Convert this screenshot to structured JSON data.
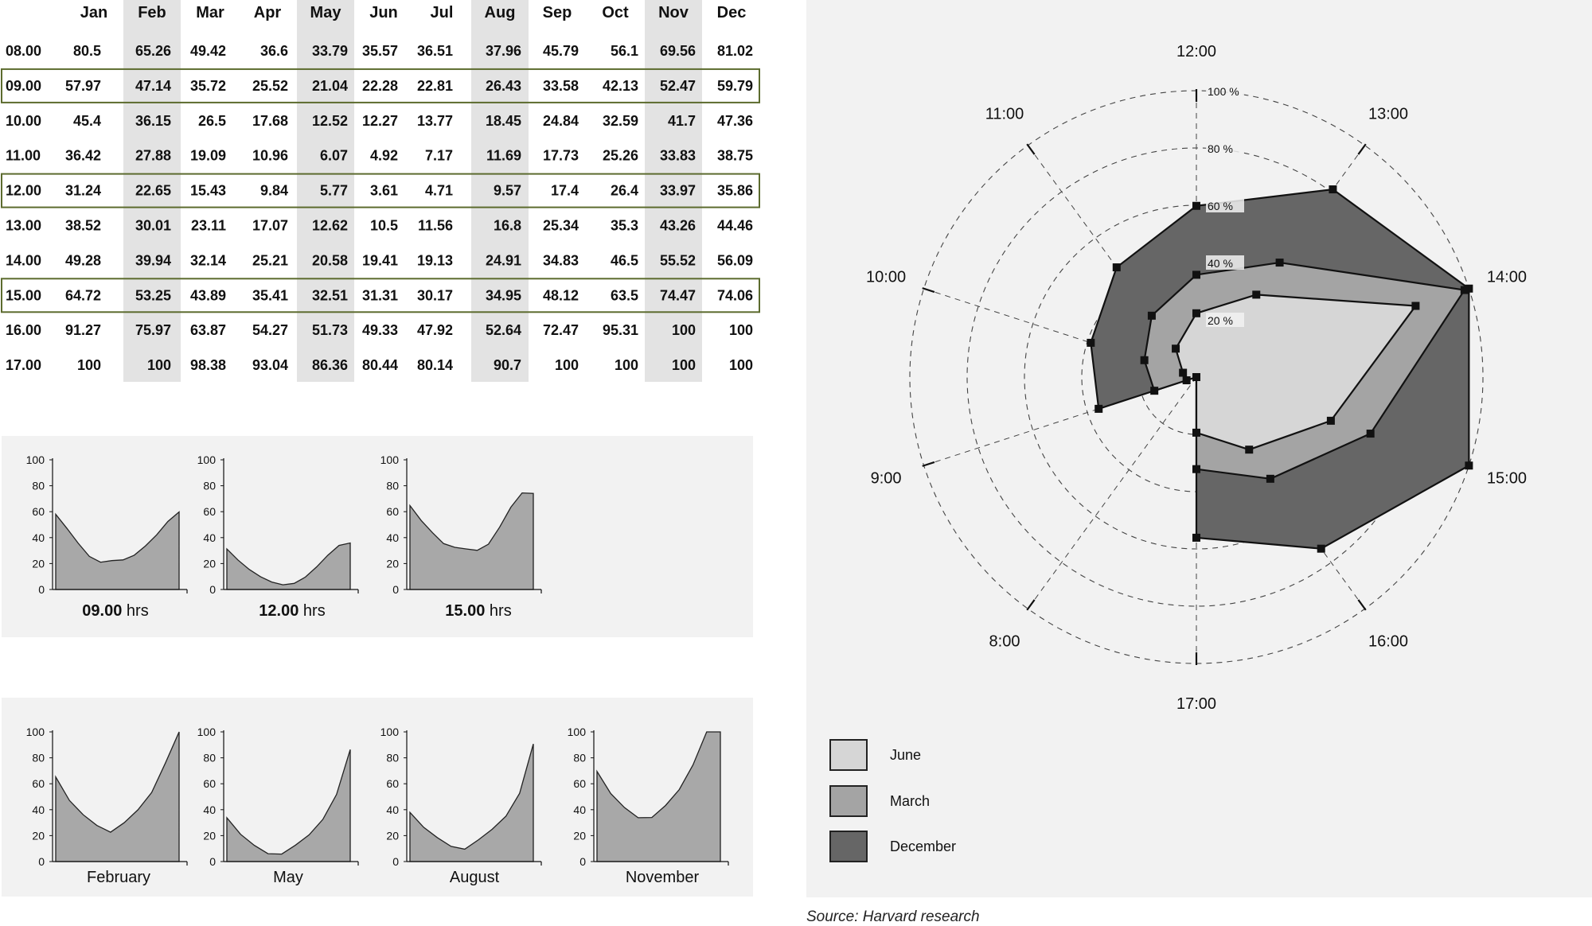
{
  "table": {
    "months": [
      "Jan",
      "Feb",
      "Mar",
      "Apr",
      "May",
      "Jun",
      "Jul",
      "Aug",
      "Sep",
      "Oct",
      "Nov",
      "Dec"
    ],
    "highlight_months": [
      "Feb",
      "May",
      "Aug",
      "Nov"
    ],
    "highlight_hours": [
      "09.00",
      "12.00",
      "15.00"
    ],
    "rows": [
      {
        "hour": "08.00",
        "values": [
          "80.5",
          "65.26",
          "49.42",
          "36.6",
          "33.79",
          "35.57",
          "36.51",
          "37.96",
          "45.79",
          "56.1",
          "69.56",
          "81.02"
        ]
      },
      {
        "hour": "09.00",
        "values": [
          "57.97",
          "47.14",
          "35.72",
          "25.52",
          "21.04",
          "22.28",
          "22.81",
          "26.43",
          "33.58",
          "42.13",
          "52.47",
          "59.79"
        ]
      },
      {
        "hour": "10.00",
        "values": [
          "45.4",
          "36.15",
          "26.5",
          "17.68",
          "12.52",
          "12.27",
          "13.77",
          "18.45",
          "24.84",
          "32.59",
          "41.7",
          "47.36"
        ]
      },
      {
        "hour": "11.00",
        "values": [
          "36.42",
          "27.88",
          "19.09",
          "10.96",
          "6.07",
          "4.92",
          "7.17",
          "11.69",
          "17.73",
          "25.26",
          "33.83",
          "38.75"
        ]
      },
      {
        "hour": "12.00",
        "values": [
          "31.24",
          "22.65",
          "15.43",
          "9.84",
          "5.77",
          "3.61",
          "4.71",
          "9.57",
          "17.4",
          "26.4",
          "33.97",
          "35.86"
        ]
      },
      {
        "hour": "13.00",
        "values": [
          "38.52",
          "30.01",
          "23.11",
          "17.07",
          "12.62",
          "10.5",
          "11.56",
          "16.8",
          "25.34",
          "35.3",
          "43.26",
          "44.46"
        ]
      },
      {
        "hour": "14.00",
        "values": [
          "49.28",
          "39.94",
          "32.14",
          "25.21",
          "20.58",
          "19.41",
          "19.13",
          "24.91",
          "34.83",
          "46.5",
          "55.52",
          "56.09"
        ]
      },
      {
        "hour": "15.00",
        "values": [
          "64.72",
          "53.25",
          "43.89",
          "35.41",
          "32.51",
          "31.31",
          "30.17",
          "34.95",
          "48.12",
          "63.5",
          "74.47",
          "74.06"
        ]
      },
      {
        "hour": "16.00",
        "values": [
          "91.27",
          "75.97",
          "63.87",
          "54.27",
          "51.73",
          "49.33",
          "47.92",
          "52.64",
          "72.47",
          "95.31",
          "100",
          "100"
        ]
      },
      {
        "hour": "17.00",
        "values": [
          "100",
          "100",
          "98.38",
          "93.04",
          "86.36",
          "80.44",
          "80.14",
          "90.7",
          "100",
          "100",
          "100",
          "100"
        ]
      }
    ]
  },
  "hour_charts": {
    "items": [
      {
        "bold": "09.00",
        "suffix": " hrs"
      },
      {
        "bold": "12.00",
        "suffix": " hrs"
      },
      {
        "bold": "15.00",
        "suffix": " hrs"
      }
    ]
  },
  "month_charts": {
    "items": [
      {
        "label": "February"
      },
      {
        "label": "May"
      },
      {
        "label": "August"
      },
      {
        "label": "November"
      }
    ]
  },
  "chart_data": [
    {
      "type": "area",
      "panel": "hours",
      "y_ticks": [
        "100",
        "80",
        "60",
        "40",
        "20",
        "0"
      ],
      "ylim": [
        0,
        100
      ],
      "categories": [
        "Jan",
        "Feb",
        "Mar",
        "Apr",
        "May",
        "Jun",
        "Jul",
        "Aug",
        "Sep",
        "Oct",
        "Nov",
        "Dec"
      ],
      "series": [
        {
          "values": [
            57.97,
            47.14,
            35.72,
            25.52,
            21.04,
            22.28,
            22.81,
            26.43,
            33.58,
            42.13,
            52.47,
            59.79
          ]
        },
        {
          "values": [
            31.24,
            22.65,
            15.43,
            9.84,
            5.77,
            3.61,
            4.71,
            9.57,
            17.4,
            26.4,
            33.97,
            35.86
          ]
        },
        {
          "values": [
            64.72,
            53.25,
            43.89,
            35.41,
            32.51,
            31.31,
            30.17,
            34.95,
            48.12,
            63.5,
            74.47,
            74.06
          ]
        }
      ]
    },
    {
      "type": "area",
      "panel": "months",
      "y_ticks": [
        "100",
        "80",
        "60",
        "40",
        "20",
        "0"
      ],
      "ylim": [
        0,
        100
      ],
      "categories": [
        "08.00",
        "09.00",
        "10.00",
        "11.00",
        "12.00",
        "13.00",
        "14.00",
        "15.00",
        "16.00",
        "17.00"
      ],
      "series": [
        {
          "values": [
            65.26,
            47.14,
            36.15,
            27.88,
            22.65,
            30.01,
            39.94,
            53.25,
            75.97,
            100
          ]
        },
        {
          "values": [
            33.79,
            21.04,
            12.52,
            6.07,
            5.77,
            12.62,
            20.58,
            32.51,
            51.73,
            86.36
          ]
        },
        {
          "values": [
            37.96,
            26.43,
            18.45,
            11.69,
            9.57,
            16.8,
            24.91,
            34.95,
            52.64,
            90.7
          ]
        },
        {
          "values": [
            69.56,
            52.47,
            41.7,
            33.83,
            33.97,
            43.26,
            55.52,
            74.47,
            100,
            100
          ]
        }
      ]
    },
    {
      "type": "radar",
      "axes": [
        "8:00",
        "9:00",
        "10:00",
        "11:00",
        "12:00",
        "13:00",
        "14:00",
        "15:00",
        "16:00",
        "17:00"
      ],
      "ring_labels": [
        "100 %",
        "80 %",
        "60 %",
        "40 %",
        "20 %"
      ],
      "rmax": 100,
      "series": [
        {
          "name": "June",
          "color": "#d6d6d6",
          "values": [
            0,
            3.61,
            4.92,
            12.27,
            22.28,
            35.57,
            80.44,
            49.33,
            31.31,
            19.41
          ]
        },
        {
          "name": "March",
          "color": "#a4a4a4",
          "values": [
            0,
            15.43,
            19.09,
            26.5,
            35.72,
            49.42,
            98.38,
            63.87,
            43.89,
            32.14
          ]
        },
        {
          "name": "December",
          "color": "#666666",
          "values": [
            0,
            35.86,
            38.75,
            47.36,
            59.79,
            81.02,
            100,
            100,
            74.06,
            56.09
          ]
        }
      ]
    }
  ],
  "radar": {
    "hour_labels": [
      "12:00",
      "13:00",
      "14:00",
      "15:00",
      "16:00",
      "17:00",
      "8:00",
      "9:00",
      "10:00",
      "11:00"
    ],
    "ring_labels": [
      "100 %",
      "80 %",
      "60 %",
      "40 %",
      "20 %"
    ]
  },
  "legend": [
    {
      "label": "June",
      "color": "#d6d6d6"
    },
    {
      "label": "March",
      "color": "#a4a4a4"
    },
    {
      "label": "December",
      "color": "#666666"
    }
  ],
  "source": "Source: Harvard research"
}
